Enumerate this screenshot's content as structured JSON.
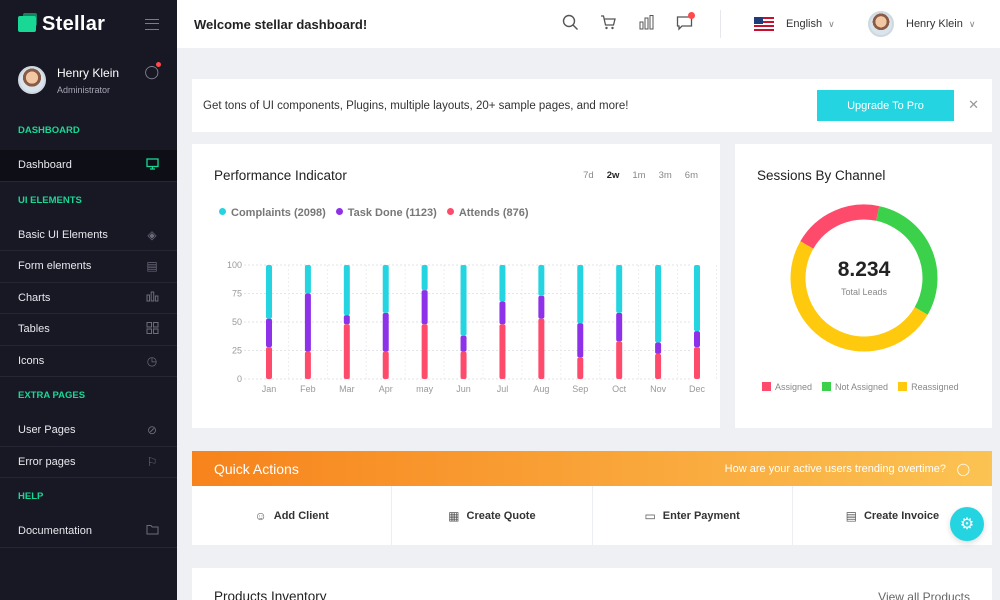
{
  "brand": {
    "name": "Stellar"
  },
  "profile": {
    "name": "Henry Klein",
    "role": "Administrator"
  },
  "sidebar": {
    "sections": [
      {
        "category": "DASHBOARD",
        "items": [
          {
            "label": "Dashboard",
            "icon": "monitor-icon",
            "active": true
          }
        ]
      },
      {
        "category": "UI ELEMENTS",
        "items": [
          {
            "label": "Basic UI Elements",
            "icon": "layers-icon"
          },
          {
            "label": "Form elements",
            "icon": "book-icon"
          },
          {
            "label": "Charts",
            "icon": "bar-chart-icon"
          },
          {
            "label": "Tables",
            "icon": "grid-icon"
          },
          {
            "label": "Icons",
            "icon": "globe-icon"
          }
        ]
      },
      {
        "category": "EXTRA PAGES",
        "items": [
          {
            "label": "User Pages",
            "icon": "disabled-icon"
          },
          {
            "label": "Error pages",
            "icon": "flag-icon"
          }
        ]
      },
      {
        "category": "HELP",
        "items": [
          {
            "label": "Documentation",
            "icon": "folder-icon"
          }
        ]
      }
    ]
  },
  "header": {
    "welcome": "Welcome stellar dashboard!",
    "language": "English",
    "user_name": "Henry Klein"
  },
  "banner": {
    "text": "Get tons of UI components, Plugins, multiple layouts, 20+ sample pages, and more!",
    "button": "Upgrade To Pro"
  },
  "performance": {
    "title": "Performance Indicator",
    "periods": [
      "7d",
      "2w",
      "1m",
      "3m",
      "6m"
    ],
    "selected_period": "2w",
    "legend": [
      {
        "label": "Complaints (2098)",
        "color": "#24d4e0"
      },
      {
        "label": "Task Done (1123)",
        "color": "#8e32e9"
      },
      {
        "label": "Attends (876)",
        "color": "#ff4b6b"
      }
    ]
  },
  "chart_data": {
    "type": "bar",
    "stacked": true,
    "categories": [
      "Jan",
      "Feb",
      "Mar",
      "Apr",
      "may",
      "Jun",
      "Jul",
      "Aug",
      "Sep",
      "Oct",
      "Nov",
      "Dec"
    ],
    "ylim": [
      0,
      100
    ],
    "yticks": [
      0,
      25,
      50,
      75,
      100
    ],
    "grid": true,
    "series": [
      {
        "name": "Attends",
        "color": "#ff4b6b",
        "values": [
          28,
          24,
          48,
          24,
          48,
          24,
          48,
          53,
          19,
          33,
          22,
          28
        ]
      },
      {
        "name": "Task Done",
        "color": "#8e32e9",
        "values": [
          25,
          51,
          8,
          34,
          30,
          14,
          20,
          20,
          30,
          25,
          10,
          14
        ]
      },
      {
        "name": "Complaints",
        "color": "#24d4e0",
        "values": [
          47,
          25,
          44,
          42,
          22,
          62,
          32,
          27,
          51,
          42,
          68,
          58
        ]
      }
    ]
  },
  "sessions": {
    "title": "Sessions By Channel",
    "total_value": "8.234",
    "total_label": "Total Leads",
    "legend": [
      {
        "label": "Assigned",
        "color": "#ff4b6b"
      },
      {
        "label": "Not Assigned",
        "color": "#3bd14b"
      },
      {
        "label": "Reassigned",
        "color": "#ffc90e"
      }
    ],
    "donut": [
      {
        "name": "Assigned",
        "value": 20,
        "color": "#ff4b6b"
      },
      {
        "name": "Not Assigned",
        "value": 30,
        "color": "#3bd14b"
      },
      {
        "name": "Reassigned",
        "value": 50,
        "color": "#ffc90e"
      }
    ]
  },
  "quick_actions": {
    "title": "Quick Actions",
    "question": "How are your active users trending overtime?",
    "buttons": [
      "Add Client",
      "Create Quote",
      "Enter Payment",
      "Create Invoice"
    ]
  },
  "inventory": {
    "title": "Products Inventory",
    "link": "View all Products"
  }
}
